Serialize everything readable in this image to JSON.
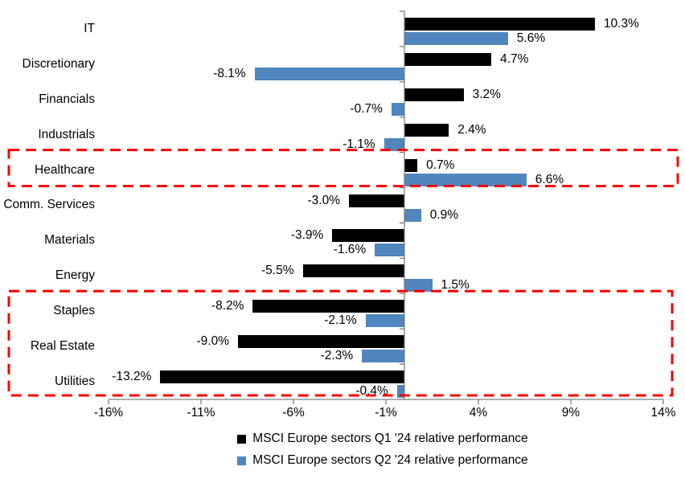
{
  "chart_data": {
    "type": "bar",
    "orientation": "horizontal",
    "title": "",
    "xlabel": "",
    "ylabel": "",
    "grid": false,
    "legend_position": "bottom",
    "categories": [
      "IT",
      "Discretionary",
      "Financials",
      "Industrials",
      "Healthcare",
      "Comm. Services",
      "Materials",
      "Energy",
      "Staples",
      "Real Estate",
      "Utilities"
    ],
    "series": [
      {
        "name": "MSCI Europe sectors Q1 '24 relative performance",
        "color": "#000000",
        "values": [
          10.3,
          4.7,
          3.2,
          2.4,
          0.7,
          -3.0,
          -3.9,
          -5.5,
          -8.2,
          -9.0,
          -13.2
        ],
        "data_labels": [
          "10.3%",
          "4.7%",
          "3.2%",
          "2.4%",
          "0.7%",
          "-3.0%",
          "-3.9%",
          "-5.5%",
          "-8.2%",
          "-9.0%",
          "-13.2%"
        ]
      },
      {
        "name": "MSCI Europe sectors Q2 '24 relative performance",
        "color": "#4F86BD",
        "values": [
          5.6,
          -8.1,
          -0.7,
          -1.1,
          6.6,
          0.9,
          -1.6,
          1.5,
          -2.1,
          -2.3,
          -0.4
        ],
        "data_labels": [
          "5.6%",
          "-8.1%",
          "-0.7%",
          "-1.1%",
          "6.6%",
          "0.9%",
          "-1.6%",
          "1.5%",
          "-2.1%",
          "-2.3%",
          "-0.4%"
        ]
      }
    ],
    "x_ticks": [
      {
        "value": -16,
        "label": "-16%"
      },
      {
        "value": -11,
        "label": "-11%"
      },
      {
        "value": -6,
        "label": "-6%"
      },
      {
        "value": -1,
        "label": "-1%"
      },
      {
        "value": 4,
        "label": "4%"
      },
      {
        "value": 9,
        "label": "9%"
      },
      {
        "value": 14,
        "label": "14%"
      }
    ],
    "xlim": [
      -16,
      14
    ],
    "axis_color": "#808080",
    "highlight_color": "#FF0000",
    "highlights": [
      {
        "name": "healthcare-highlight-box",
        "first_category": "Healthcare",
        "last_category": "Healthcare"
      },
      {
        "name": "defensives-highlight-box",
        "first_category": "Staples",
        "last_category": "Utilities"
      }
    ]
  }
}
